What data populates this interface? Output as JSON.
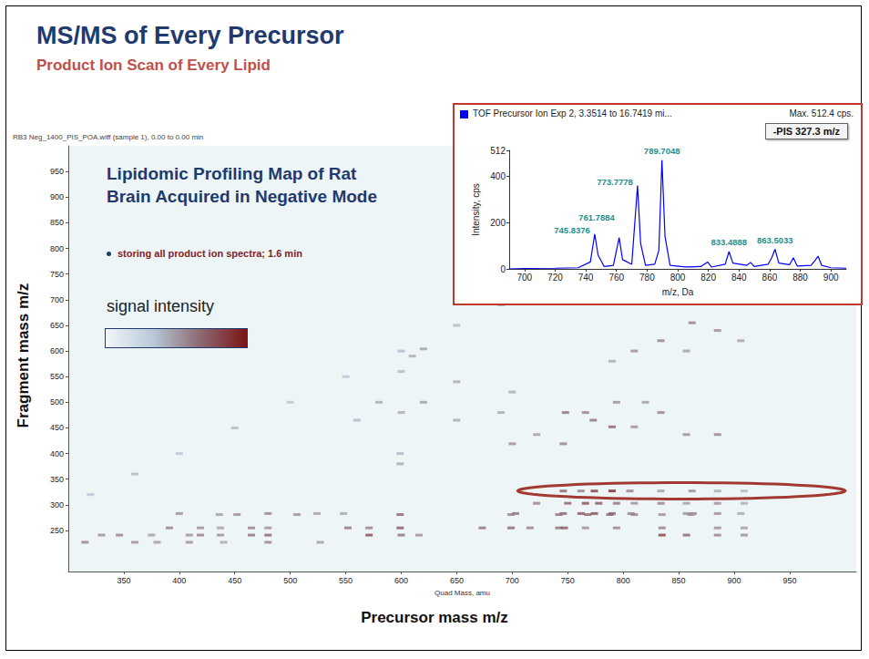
{
  "slide": {
    "title": "MS/MS of Every Precursor",
    "subtitle": "Product Ion Scan of Every Lipid"
  },
  "chart_data": [
    {
      "type": "scatter",
      "header": "RB3 Neg_1400_PIS_POA.wiff (sample 1), 0.00 to 0.00 min",
      "annotations": [
        "Lipidomic Profiling Map of Rat Brain Acquired in Negative Mode",
        "storing all product ion spectra; 1.6 min"
      ],
      "xlabel": "Precursor mass m/z",
      "xaxis_caption": "Quad Mass, amu",
      "ylabel": "Fragment mass m/z",
      "xlim": [
        300,
        1010
      ],
      "xticks": [
        350,
        400,
        450,
        500,
        550,
        600,
        650,
        700,
        750,
        800,
        850,
        900,
        950
      ],
      "ylim": [
        170,
        1000
      ],
      "yticks": [
        250,
        300,
        350,
        400,
        450,
        500,
        550,
        600,
        650,
        700,
        750,
        800,
        850,
        900,
        950
      ],
      "grid": false,
      "color_scale": {
        "label": "signal intensity",
        "range": [
          0,
          100
        ],
        "colors": [
          "#f2f6fa",
          "#b8c9d8",
          "#8d6a73",
          "#7b1416"
        ]
      },
      "highlight": {
        "y": 327.3,
        "x": [
          705,
          1000
        ]
      },
      "cells": [
        [
          746,
          327,
          70
        ],
        [
          762,
          327,
          60
        ],
        [
          774,
          327,
          85
        ],
        [
          790,
          327,
          95
        ],
        [
          806,
          327,
          60
        ],
        [
          834,
          327,
          50
        ],
        [
          862,
          327,
          55
        ],
        [
          885,
          327,
          45
        ],
        [
          909,
          327,
          40
        ],
        [
          722,
          303,
          60
        ],
        [
          750,
          303,
          70
        ],
        [
          766,
          303,
          80
        ],
        [
          778,
          303,
          75
        ],
        [
          794,
          303,
          65
        ],
        [
          810,
          303,
          55
        ],
        [
          834,
          303,
          60
        ],
        [
          857,
          303,
          50
        ],
        [
          885,
          303,
          55
        ],
        [
          909,
          303,
          45
        ],
        [
          400,
          283,
          55
        ],
        [
          480,
          283,
          60
        ],
        [
          524,
          283,
          50
        ],
        [
          548,
          283,
          45
        ],
        [
          703,
          283,
          65
        ],
        [
          746,
          283,
          70
        ],
        [
          762,
          283,
          75
        ],
        [
          774,
          283,
          80
        ],
        [
          790,
          283,
          70
        ],
        [
          807,
          283,
          60
        ],
        [
          857,
          283,
          55
        ],
        [
          863,
          283,
          60
        ],
        [
          885,
          283,
          55
        ],
        [
          906,
          283,
          45
        ],
        [
          436,
          281,
          50
        ],
        [
          452,
          281,
          55
        ],
        [
          506,
          281,
          55
        ],
        [
          599,
          281,
          70
        ],
        [
          699,
          281,
          60
        ],
        [
          742,
          281,
          65
        ],
        [
          768,
          281,
          70
        ],
        [
          788,
          281,
          70
        ],
        [
          810,
          281,
          60
        ],
        [
          835,
          281,
          55
        ],
        [
          861,
          281,
          55
        ],
        [
          391,
          255,
          60
        ],
        [
          419,
          255,
          55
        ],
        [
          437,
          255,
          50
        ],
        [
          465,
          255,
          60
        ],
        [
          480,
          255,
          55
        ],
        [
          552,
          255,
          65
        ],
        [
          571,
          255,
          60
        ],
        [
          599,
          255,
          75
        ],
        [
          673,
          255,
          65
        ],
        [
          699,
          255,
          70
        ],
        [
          716,
          255,
          60
        ],
        [
          742,
          255,
          65
        ],
        [
          747,
          255,
          75
        ],
        [
          766,
          255,
          55
        ],
        [
          794,
          255,
          60
        ],
        [
          835,
          255,
          60
        ],
        [
          885,
          255,
          55
        ],
        [
          909,
          255,
          50
        ],
        [
          330,
          241,
          55
        ],
        [
          346,
          241,
          60
        ],
        [
          375,
          241,
          50
        ],
        [
          409,
          241,
          55
        ],
        [
          419,
          241,
          60
        ],
        [
          437,
          241,
          55
        ],
        [
          465,
          241,
          65
        ],
        [
          480,
          241,
          70
        ],
        [
          571,
          241,
          80
        ],
        [
          600,
          241,
          65
        ],
        [
          616,
          241,
          55
        ],
        [
          835,
          241,
          85
        ],
        [
          857,
          241,
          70
        ],
        [
          885,
          241,
          60
        ],
        [
          909,
          241,
          55
        ],
        [
          315,
          227,
          60
        ],
        [
          360,
          227,
          55
        ],
        [
          380,
          227,
          50
        ],
        [
          409,
          227,
          55
        ],
        [
          440,
          227,
          45
        ],
        [
          480,
          227,
          60
        ],
        [
          527,
          227,
          50
        ],
        [
          748,
          480,
          65
        ],
        [
          766,
          480,
          60
        ],
        [
          790,
          452,
          70
        ],
        [
          810,
          452,
          55
        ],
        [
          834,
          480,
          60
        ],
        [
          857,
          437,
          55
        ],
        [
          885,
          437,
          60
        ],
        [
          700,
          419,
          55
        ],
        [
          722,
          437,
          50
        ],
        [
          746,
          419,
          60
        ],
        [
          773,
          465,
          65
        ],
        [
          794,
          500,
          55
        ],
        [
          820,
          500,
          50
        ],
        [
          600,
          480,
          45
        ],
        [
          620,
          500,
          50
        ],
        [
          690,
          480,
          45
        ],
        [
          650,
          465,
          45
        ],
        [
          560,
          465,
          40
        ],
        [
          580,
          500,
          45
        ],
        [
          810,
          600,
          55
        ],
        [
          834,
          620,
          60
        ],
        [
          857,
          600,
          50
        ],
        [
          885,
          640,
          55
        ],
        [
          906,
          620,
          50
        ],
        [
          790,
          580,
          45
        ],
        [
          862,
          655,
          60
        ],
        [
          600,
          560,
          40
        ],
        [
          650,
          540,
          45
        ],
        [
          700,
          520,
          45
        ],
        [
          620,
          604,
          50
        ],
        [
          610,
          590,
          45
        ],
        [
          599,
          380,
          45
        ],
        [
          599,
          400,
          40
        ],
        [
          320,
          320,
          35
        ],
        [
          360,
          360,
          40
        ],
        [
          400,
          400,
          35
        ],
        [
          450,
          450,
          40
        ],
        [
          500,
          500,
          35
        ],
        [
          550,
          550,
          35
        ],
        [
          600,
          600,
          40
        ],
        [
          650,
          650,
          40
        ],
        [
          690,
          690,
          45
        ]
      ]
    },
    {
      "type": "line",
      "title": "TOF Precursor Ion Exp 2, 3.3514 to 16.7419 mi...",
      "subtitle": "Max. 512.4 cps.",
      "annotations": [
        "-PIS 327.3 m/z"
      ],
      "xlabel": "m/z, Da",
      "ylabel": "Intensity, cps",
      "color": "#0000ff",
      "xlim": [
        690,
        910
      ],
      "xticks": [
        700,
        720,
        740,
        760,
        780,
        800,
        820,
        840,
        860,
        880,
        900
      ],
      "ylim": [
        0,
        512
      ],
      "yticks": [
        0,
        200,
        400,
        512
      ],
      "grid": false,
      "x": [
        690,
        700,
        720,
        735,
        743,
        745.8376,
        748,
        752,
        758,
        761.7884,
        764,
        770,
        773.7778,
        775.8,
        779,
        785,
        787.7,
        789.7048,
        791.7,
        795,
        805,
        815,
        819.5,
        822,
        831,
        833.4888,
        836,
        845,
        847.5,
        850,
        859,
        861.5,
        863.5033,
        866,
        873,
        875.5,
        878,
        887,
        889.5,
        891.6,
        894,
        900,
        910
      ],
      "values": [
        0,
        2,
        3,
        5,
        30,
        150,
        60,
        10,
        15,
        135,
        40,
        20,
        360,
        110,
        15,
        20,
        80,
        470,
        140,
        15,
        8,
        10,
        30,
        8,
        20,
        75,
        25,
        15,
        28,
        10,
        20,
        50,
        85,
        25,
        18,
        48,
        12,
        15,
        35,
        55,
        15,
        5,
        3
      ],
      "peak_labels": [
        745.8376,
        761.7884,
        773.7778,
        789.7048,
        833.4888,
        863.5033
      ]
    }
  ]
}
